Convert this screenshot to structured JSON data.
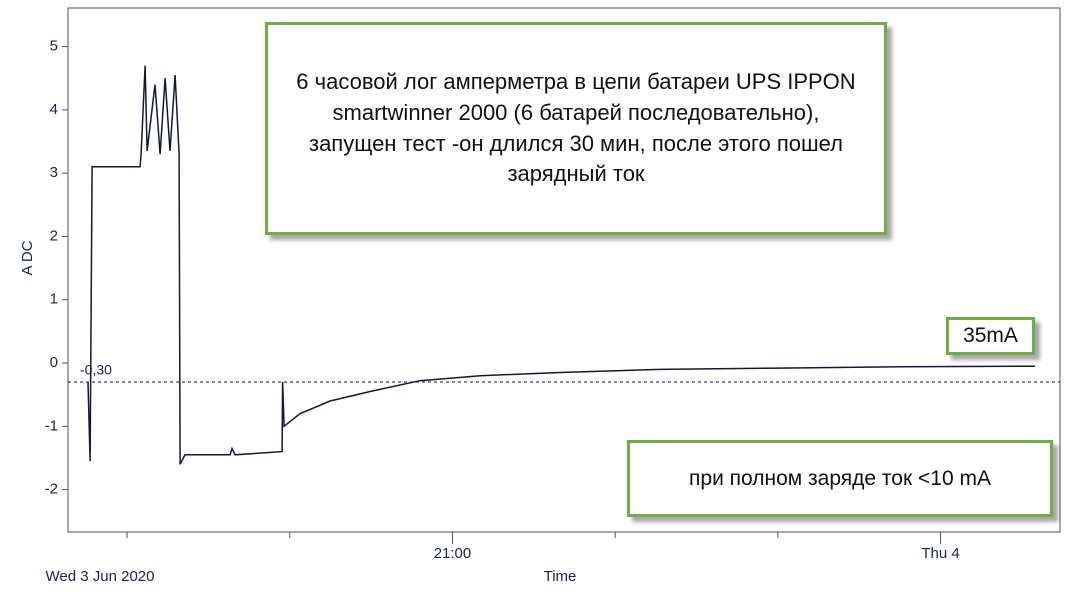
{
  "chart_data": {
    "type": "line",
    "x_axis_label": "Time",
    "y_axis_label": "A DC",
    "x_start_label": "Wed 3 Jun 2020",
    "xlim": [
      18.637,
      24.734
    ],
    "ylim": [
      -2.67,
      5.61
    ],
    "yticks": [
      -2,
      -1,
      0,
      1,
      2,
      3,
      4,
      5
    ],
    "xticks": [
      {
        "value": 19,
        "label": null
      },
      {
        "value": 20,
        "label": null
      },
      {
        "value": 21,
        "label": "21:00"
      },
      {
        "value": 22,
        "label": null
      },
      {
        "value": 23,
        "label": null
      },
      {
        "value": 24,
        "label": "Thu 4"
      }
    ],
    "reference_line": {
      "value": -0.3,
      "label": "-0,30"
    },
    "series": [
      {
        "color": "#14173a",
        "x": [
          18.76,
          18.773,
          18.785,
          18.803,
          19.08,
          19.086,
          19.111,
          19.123,
          19.172,
          19.203,
          19.234,
          19.264,
          19.295,
          19.32,
          19.326,
          19.356,
          19.633,
          19.645,
          19.664,
          19.953,
          19.956,
          19.965,
          20.063,
          20.248,
          20.494,
          20.801,
          21.17,
          21.661,
          22.276,
          23.013,
          23.751,
          24.581
        ],
        "values": [
          -0.3,
          -1.55,
          3.1,
          3.1,
          3.1,
          3.3,
          4.7,
          3.35,
          4.4,
          3.3,
          4.5,
          3.35,
          4.55,
          3.3,
          -1.6,
          -1.45,
          -1.45,
          -1.35,
          -1.45,
          -1.4,
          -0.3,
          -1.0,
          -0.8,
          -0.6,
          -0.45,
          -0.28,
          -0.2,
          -0.15,
          -0.1,
          -0.08,
          -0.06,
          -0.05
        ]
      }
    ],
    "annotations": [
      "6 часовой лог амперметра в цепи батареи UPS IPPON smartwinner 2000 (6 батарей последовательно), запущен тест -он длился 30 мин, после этого пошел зарядный ток",
      "35mA",
      "при полном заряде ток <10 mA"
    ]
  }
}
